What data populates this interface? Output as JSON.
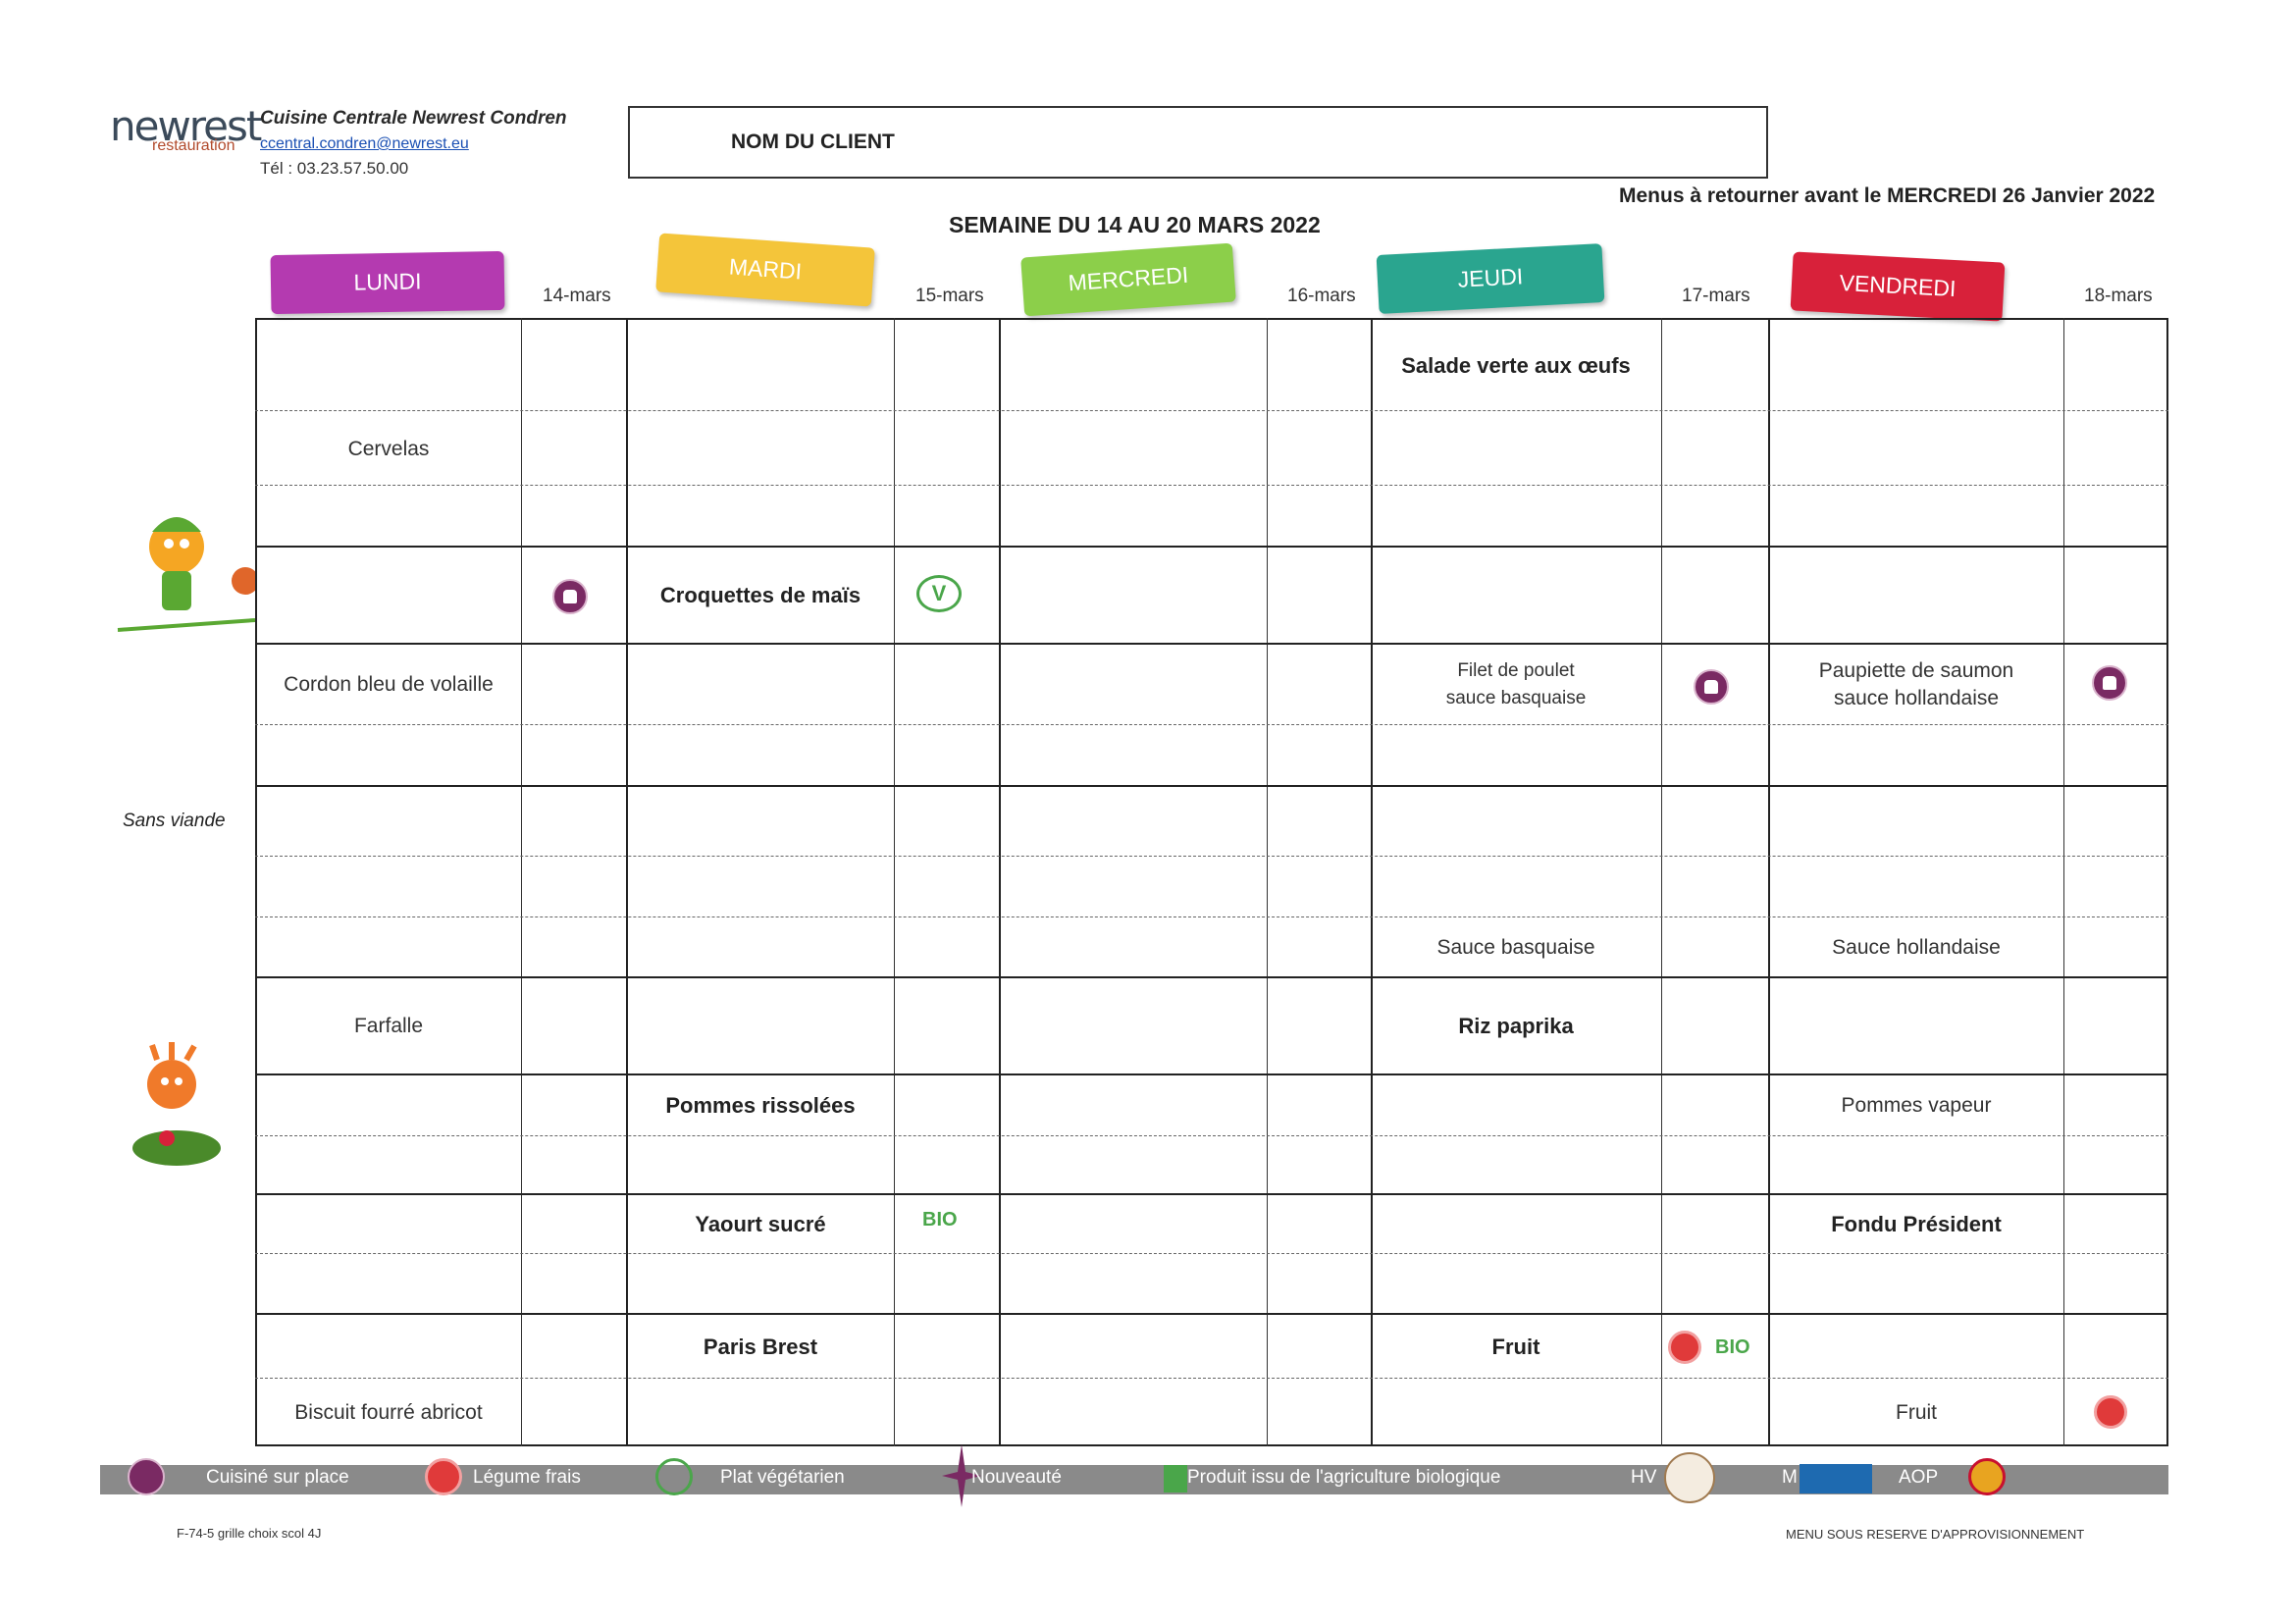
{
  "header": {
    "logo_main": "newrest",
    "logo_sub": "restauration",
    "company": "Cuisine Centrale Newrest Condren",
    "email": "ccentral.condren@newrest.eu",
    "phone": "Tél : 03.23.57.50.00",
    "client_label": "NOM DU CLIENT",
    "return_note": "Menus à retourner avant le MERCREDI 26 Janvier 2022",
    "week_title": "SEMAINE DU 14 AU 20 MARS 2022"
  },
  "days": [
    {
      "label": "LUNDI",
      "date": "14-mars",
      "color": "#b43ab0"
    },
    {
      "label": "MARDI",
      "date": "15-mars",
      "color": "#f4c53a"
    },
    {
      "label": "MERCREDI",
      "date": "16-mars",
      "color": "#8ccf4a"
    },
    {
      "label": "JEUDI",
      "date": "17-mars",
      "color": "#2aa58f"
    },
    {
      "label": "VENDREDI",
      "date": "18-mars",
      "color": "#d8213a"
    }
  ],
  "menu": {
    "jeudi_entree": "Salade verte aux œufs",
    "lundi_entree": "Cervelas",
    "mardi_plat_veg": "Croquettes de maïs",
    "lundi_plat": "Cordon bleu de volaille",
    "jeudi_plat_1": "Filet de poulet",
    "jeudi_plat_2": "sauce basquaise",
    "vendredi_plat_1": "Paupiette de saumon",
    "vendredi_plat_2": "sauce hollandaise",
    "jeudi_sauce": "Sauce basquaise",
    "vendredi_sauce": "Sauce hollandaise",
    "lundi_feculent": "Farfalle",
    "jeudi_feculent": "Riz paprika",
    "mardi_legume": "Pommes rissolées",
    "vendredi_legume": "Pommes vapeur",
    "mardi_laitage": "Yaourt sucré",
    "vendredi_laitage": "Fondu Président",
    "mardi_dessert": "Paris Brest",
    "jeudi_dessert": "Fruit",
    "lundi_dessert": "Biscuit fourré abricot",
    "vendredi_dessert": "Fruit"
  },
  "icons": {
    "veg_letter": "V",
    "bio": "BIO"
  },
  "side_label": "Sans viande",
  "legend": {
    "cuisine": "Cuisiné sur place",
    "legume": "Légume frais",
    "vegetarien": "Plat végétarien",
    "nouveaute": "Nouveauté",
    "bio": "Produit issu de l'agriculture biologique",
    "hve": "HV",
    "msc": "M",
    "aop": "AOP"
  },
  "footer": {
    "left": "F-74-5 grille choix scol 4J",
    "right": "MENU SOUS RESERVE D'APPROVISIONNEMENT"
  }
}
